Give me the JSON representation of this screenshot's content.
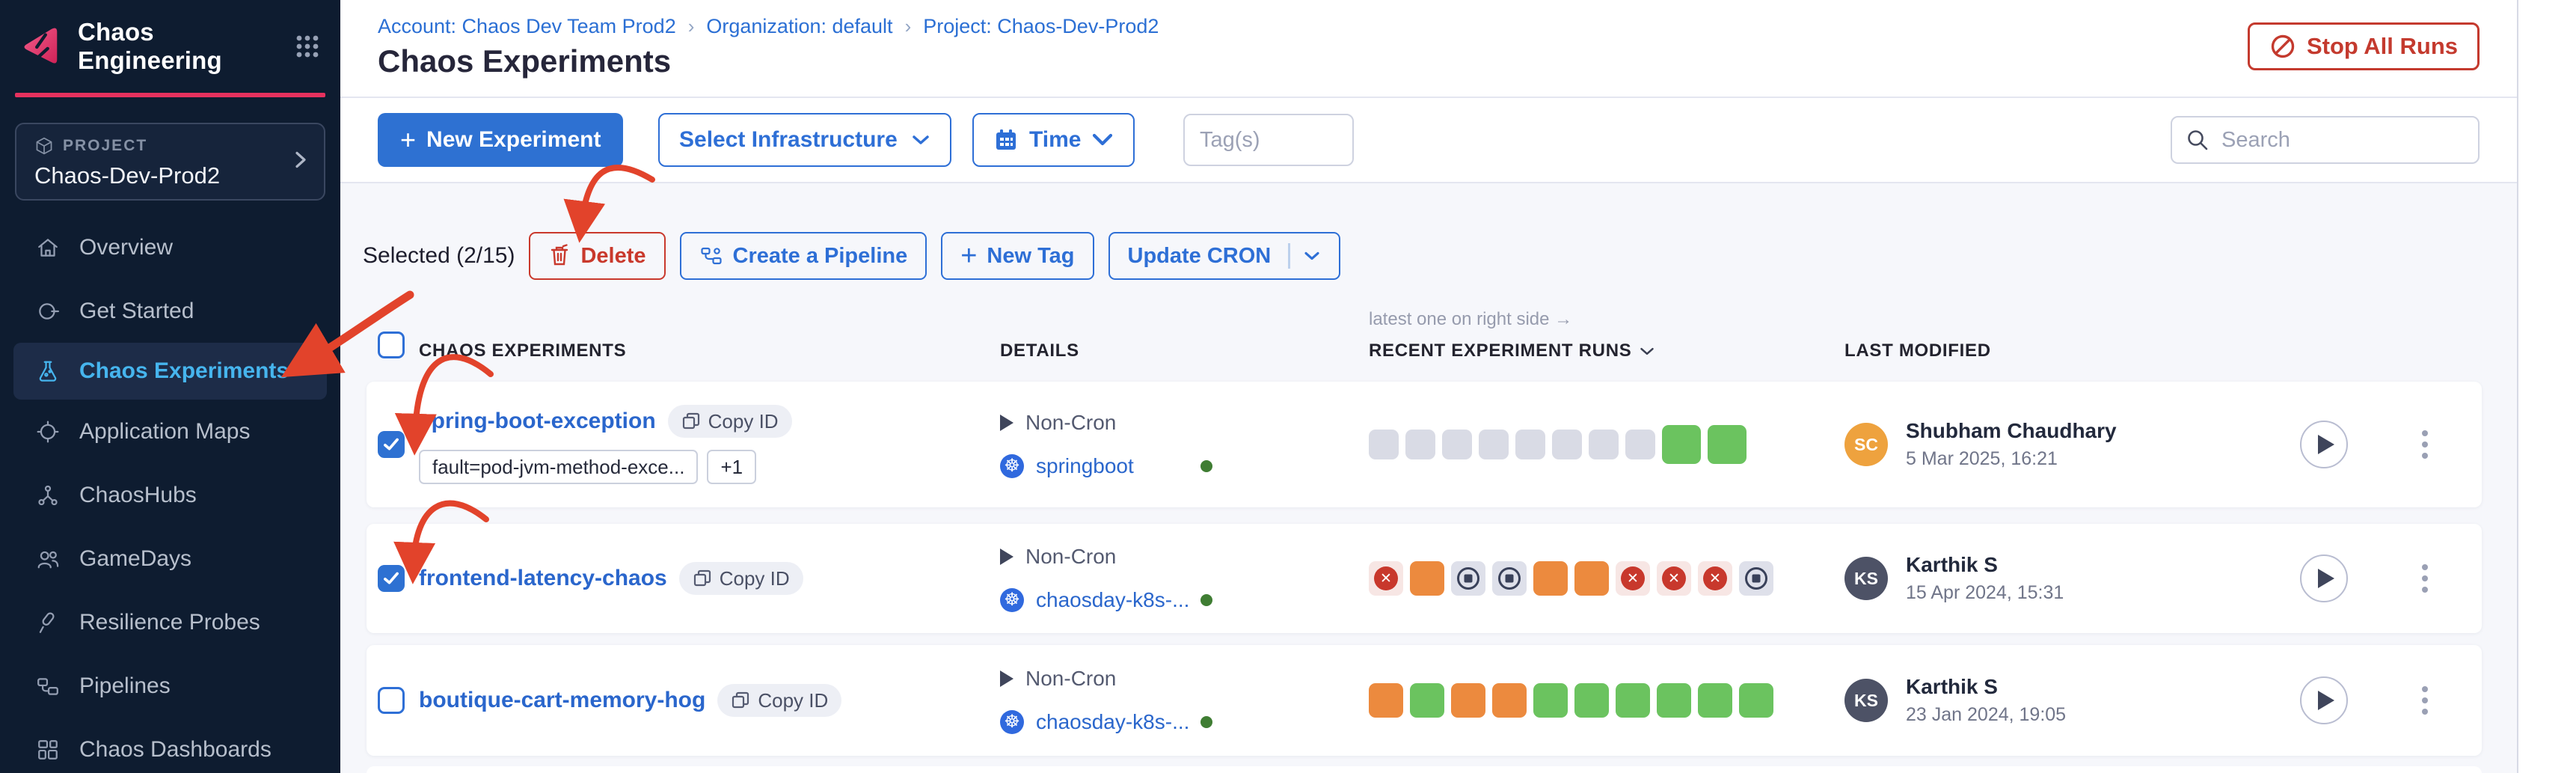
{
  "sidebar": {
    "brand": "Chaos Engineering",
    "project": {
      "label": "PROJECT",
      "name": "Chaos-Dev-Prod2"
    },
    "items": [
      {
        "label": "Overview"
      },
      {
        "label": "Get Started"
      },
      {
        "label": "Chaos Experiments",
        "active": true
      },
      {
        "label": "Application Maps"
      },
      {
        "label": "ChaosHubs"
      },
      {
        "label": "GameDays"
      },
      {
        "label": "Resilience Probes"
      },
      {
        "label": "Pipelines"
      },
      {
        "label": "Chaos Dashboards"
      }
    ]
  },
  "header": {
    "breadcrumbs": [
      {
        "label": "Account: Chaos Dev Team Prod2"
      },
      {
        "label": "Organization: default"
      },
      {
        "label": "Project: Chaos-Dev-Prod2"
      }
    ],
    "title": "Chaos Experiments",
    "stop_all_runs_label": "Stop All Runs"
  },
  "toolbar": {
    "new_experiment_label": "New Experiment",
    "select_infrastructure_label": "Select Infrastructure",
    "time_label": "Time",
    "tags_placeholder": "Tag(s)",
    "search_placeholder": "Search"
  },
  "selection_bar": {
    "selected_label": "Selected (2/15)",
    "delete_label": "Delete",
    "create_pipeline_label": "Create a Pipeline",
    "new_tag_label": "New Tag",
    "update_cron_label": "Update CRON"
  },
  "table": {
    "runs_note": "latest one on right side →",
    "columns": {
      "experiments": "CHAOS EXPERIMENTS",
      "details": "DETAILS",
      "runs": "RECENT EXPERIMENT RUNS",
      "modified": "LAST MODIFIED"
    },
    "copy_id_label": "Copy ID",
    "rows": [
      {
        "name": "spring-boot-exception",
        "checked": true,
        "tags": [
          "fault=pod-jvm-method-exce...",
          "+1"
        ],
        "cron": "Non-Cron",
        "infra": "springboot",
        "runs": [
          "empty",
          "empty",
          "empty",
          "empty",
          "empty",
          "empty",
          "empty",
          "empty",
          "success",
          "success"
        ],
        "modified": {
          "initials": "SC",
          "name": "Shubham Chaudhary",
          "date": "5 Mar 2025, 16:21",
          "avatar_color": "#eea23e"
        }
      },
      {
        "name": "frontend-latency-chaos",
        "checked": true,
        "tags": [],
        "cron": "Non-Cron",
        "infra": "chaosday-k8s-...",
        "runs": [
          "failed",
          "running",
          "stopped",
          "stopped",
          "running",
          "running",
          "failed",
          "failed",
          "failed",
          "stopped"
        ],
        "modified": {
          "initials": "KS",
          "name": "Karthik S",
          "date": "15 Apr 2024, 15:31",
          "avatar_color": "#4d5266"
        }
      },
      {
        "name": "boutique-cart-memory-hog",
        "checked": false,
        "tags": [],
        "cron": "Non-Cron",
        "infra": "chaosday-k8s-...",
        "runs": [
          "running",
          "success",
          "running",
          "running",
          "success",
          "success",
          "success",
          "success",
          "success",
          "success"
        ],
        "modified": {
          "initials": "KS",
          "name": "Karthik S",
          "date": "23 Jan 2024, 19:05",
          "avatar_color": "#4d5266"
        }
      }
    ]
  },
  "colors": {
    "primary_blue": "#2e71d2",
    "danger_red": "#c9392c",
    "success_green": "#6bc35f",
    "running_orange": "#ec8a3e",
    "brand_pink": "#e6315e",
    "active_nav_blue": "#46b5ee",
    "annotation_red": "#e2432b"
  }
}
